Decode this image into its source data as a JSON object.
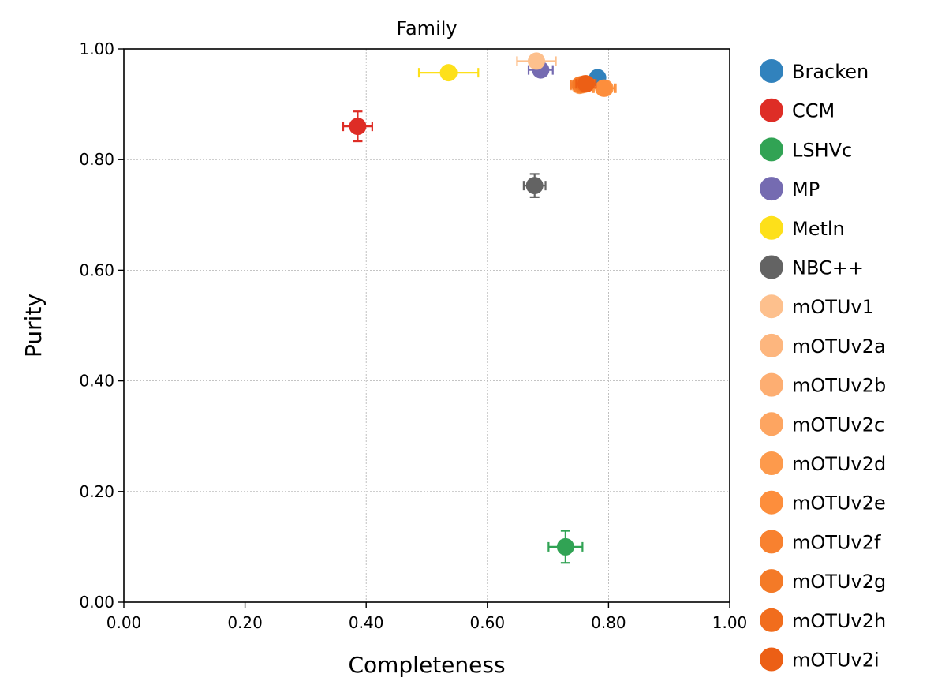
{
  "chart_data": {
    "type": "scatter",
    "title": "Family",
    "xlabel": "Completeness",
    "ylabel": "Purity",
    "xlim": [
      0,
      1
    ],
    "ylim": [
      0,
      1
    ],
    "xticks": [
      "0.00",
      "0.20",
      "0.40",
      "0.60",
      "0.80",
      "1.00"
    ],
    "yticks": [
      "0.00",
      "0.20",
      "0.40",
      "0.60",
      "0.80",
      "1.00"
    ],
    "grid": true,
    "legend_position": "right outside",
    "series": [
      {
        "name": "Bracken",
        "color": "#3182bd",
        "x": 0.782,
        "y": 0.948,
        "xerr": 0.008,
        "yerr": 0.01
      },
      {
        "name": "CCM",
        "color": "#de2d26",
        "x": 0.386,
        "y": 0.86,
        "xerr": 0.024,
        "yerr": 0.027
      },
      {
        "name": "LSHVc",
        "color": "#31a354",
        "x": 0.729,
        "y": 0.1,
        "xerr": 0.028,
        "yerr": 0.029
      },
      {
        "name": "MP",
        "color": "#756bb1",
        "x": 0.688,
        "y": 0.962,
        "xerr": 0.02,
        "yerr": 0.01
      },
      {
        "name": "Metln",
        "color": "#fde01a",
        "x": 0.536,
        "y": 0.957,
        "xerr": 0.049,
        "yerr": 0.004
      },
      {
        "name": "NBC++",
        "color": "#636363",
        "x": 0.678,
        "y": 0.753,
        "xerr": 0.018,
        "yerr": 0.021
      },
      {
        "name": "mOTUv1",
        "color": "#fdc08d",
        "x": 0.681,
        "y": 0.978,
        "xerr": 0.032,
        "yerr": 0.004
      },
      {
        "name": "mOTUv2a",
        "color": "#fdb67e",
        "x": 0.752,
        "y": 0.934,
        "xerr": 0.014,
        "yerr": 0.008
      },
      {
        "name": "mOTUv2b",
        "color": "#fdae72",
        "x": 0.756,
        "y": 0.935,
        "xerr": 0.015,
        "yerr": 0.008
      },
      {
        "name": "mOTUv2c",
        "color": "#fda561",
        "x": 0.76,
        "y": 0.936,
        "xerr": 0.015,
        "yerr": 0.008
      },
      {
        "name": "mOTUv2d",
        "color": "#fd9a4c",
        "x": 0.794,
        "y": 0.929,
        "xerr": 0.018,
        "yerr": 0.012
      },
      {
        "name": "mOTUv2e",
        "color": "#fd8e3c",
        "x": 0.792,
        "y": 0.929,
        "xerr": 0.018,
        "yerr": 0.012
      },
      {
        "name": "mOTUv2f",
        "color": "#f8812f",
        "x": 0.753,
        "y": 0.935,
        "xerr": 0.015,
        "yerr": 0.008
      },
      {
        "name": "mOTUv2g",
        "color": "#f47a27",
        "x": 0.757,
        "y": 0.936,
        "xerr": 0.015,
        "yerr": 0.008
      },
      {
        "name": "mOTUv2h",
        "color": "#f16d1d",
        "x": 0.761,
        "y": 0.937,
        "xerr": 0.015,
        "yerr": 0.008
      },
      {
        "name": "mOTUv2i",
        "color": "#ec5f15",
        "x": 0.763,
        "y": 0.937,
        "xerr": 0.016,
        "yerr": 0.008
      }
    ]
  }
}
